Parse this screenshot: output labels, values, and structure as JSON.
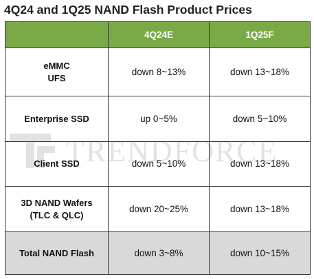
{
  "title": "4Q24 and 1Q25 NAND Flash Product Prices",
  "watermark_text": "TRENDFORCE",
  "colors": {
    "header_bg": "#7aaa47",
    "header_text": "#ffffff",
    "total_row_bg": "#d9d9d9",
    "border": "#3a3a3a"
  },
  "chart_data": {
    "type": "table",
    "title": "4Q24 and 1Q25 NAND Flash Product Prices",
    "columns": [
      "",
      "4Q24E",
      "1Q25F"
    ],
    "rows": [
      {
        "product": [
          "eMMC",
          "UFS"
        ],
        "q4_2024": "down 8~13%",
        "q1_2025": "down 13~18%"
      },
      {
        "product": [
          "Enterprise SSD"
        ],
        "q4_2024": "up 0~5%",
        "q1_2025": "down 5~10%"
      },
      {
        "product": [
          "Client SSD"
        ],
        "q4_2024": "down 5~10%",
        "q1_2025": "down 13~18%"
      },
      {
        "product": [
          "3D NAND Wafers",
          "(TLC & QLC)"
        ],
        "q4_2024": "down 20~25%",
        "q1_2025": "down 13~18%"
      },
      {
        "product": [
          "Total NAND Flash"
        ],
        "q4_2024": "down 3~8%",
        "q1_2025": "down 10~15%"
      }
    ]
  }
}
